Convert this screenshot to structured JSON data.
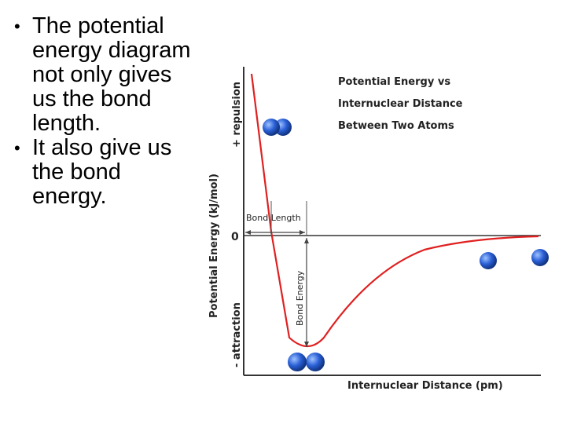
{
  "slide": {
    "bullets": [
      "The potential energy diagram not only gives us the bond length.",
      "It also give us the bond energy."
    ]
  },
  "diagram": {
    "title_lines": [
      "Potential Energy vs",
      "Internuclear Distance",
      "Between Two Atoms"
    ],
    "y_axis_label": "Potential Energy (kJ/mol)",
    "y_positive_label": "+ repulsion",
    "y_negative_label": "- attraction",
    "zero_label": "0",
    "x_axis_label": "Internuclear Distance (pm)",
    "bond_length_label": "Bond Length",
    "bond_energy_label": "Bond Energy",
    "colors": {
      "curve": "#e02020",
      "atom": "#2a5fd6",
      "axis": "#333333"
    }
  }
}
